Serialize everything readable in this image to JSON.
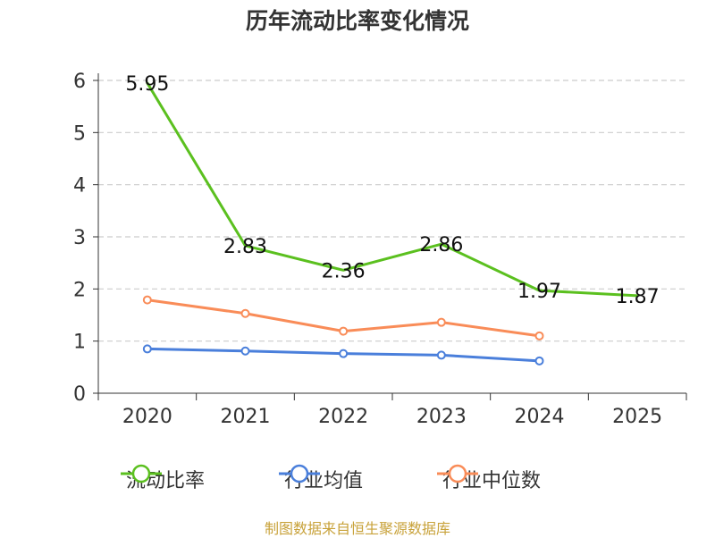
{
  "chart_data": {
    "type": "line",
    "title": "历年流动比率变化情况",
    "categories": [
      "2020",
      "2021",
      "2022",
      "2023",
      "2024",
      "2025"
    ],
    "ylim": [
      0,
      6
    ],
    "yticks": [
      0,
      1,
      2,
      3,
      4,
      5,
      6
    ],
    "ytick_labels": [
      "0",
      "1",
      "2",
      "3",
      "4",
      "5",
      "6"
    ],
    "grid": true,
    "legend_position": "bottom",
    "series": [
      {
        "name": "流动比率",
        "color": "#5bc01f",
        "values": [
          5.95,
          2.83,
          2.36,
          2.86,
          1.97,
          1.87
        ],
        "labels": [
          "5.95",
          "2.83",
          "2.36",
          "2.86",
          "1.97",
          "1.87"
        ]
      },
      {
        "name": "行业均值",
        "color": "#4a7fdb",
        "values": [
          0.85,
          0.81,
          0.76,
          0.73,
          0.62,
          null
        ]
      },
      {
        "name": "行业中位数",
        "color": "#f98c58",
        "values": [
          1.79,
          1.53,
          1.19,
          1.36,
          1.1,
          null
        ]
      }
    ]
  },
  "source": "制图数据来自恒生聚源数据库",
  "source_color": "#c8a23a"
}
